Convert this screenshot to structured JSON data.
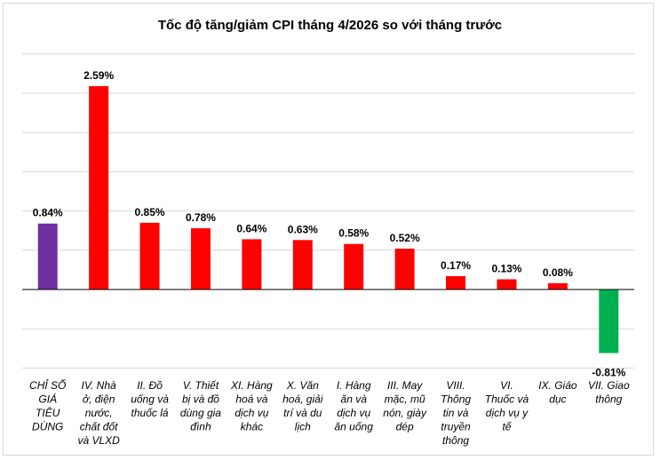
{
  "chart_data": {
    "type": "bar",
    "title": "Tốc độ tăng/giảm  CPI tháng 4/2026 so với tháng trước",
    "xlabel": "",
    "ylabel": "",
    "ylim": [
      -2,
      5
    ],
    "grid": true,
    "categories": [
      "CHỈ SỐ GIÁ TIÊU DÙNG",
      "IV. Nhà ở, điện nước, chất đốt và VLXD",
      "II. Đồ uống và thuốc lá",
      "V. Thiết bị và đồ dùng gia đình",
      "XI. Hàng hoá và dịch vụ khác",
      "X. Văn hoá, giải trí và du lịch",
      "I. Hàng ăn và dịch vụ ăn uống",
      "III. May mặc, mũ nón, giày dép",
      "VIII. Thông tin và truyền thông",
      "VI. Thuốc và dịch vụ y tế",
      "IX. Giáo dục",
      "VII. Giao thông"
    ],
    "category_lines": [
      [
        "CHỈ SỐ",
        "GIÁ",
        "TIÊU",
        "DÙNG"
      ],
      [
        "IV. Nhà",
        "ở, điện",
        "nước,",
        "chất đốt",
        "và VLXD"
      ],
      [
        "II. Đồ",
        "uống và",
        "thuốc lá"
      ],
      [
        "V. Thiết",
        "bị và đồ",
        "dùng gia",
        "đình"
      ],
      [
        "XI. Hàng",
        "hoá và",
        "dịch vụ",
        "khác"
      ],
      [
        "X. Văn",
        "hoá, giải",
        "trí và du",
        "lịch"
      ],
      [
        "I. Hàng",
        "ăn và",
        "dịch vụ",
        "ăn uống"
      ],
      [
        "III. May",
        "mặc, mũ",
        "nón, giày",
        "dép"
      ],
      [
        "VIII.",
        "Thông",
        "tin và",
        "truyền",
        "thông"
      ],
      [
        "VI.",
        "Thuốc và",
        "dịch vụ y",
        "tế"
      ],
      [
        "IX. Giáo",
        "dục"
      ],
      [
        "VII. Giao",
        "thông"
      ]
    ],
    "values": [
      0.84,
      2.59,
      0.85,
      0.78,
      0.64,
      0.63,
      0.58,
      0.52,
      0.17,
      0.13,
      0.08,
      -0.81
    ],
    "labels": [
      "0.84%",
      "2.59%",
      "0.85%",
      "0.78%",
      "0.64%",
      "0.63%",
      "0.58%",
      "0.52%",
      "0.17%",
      "0.13%",
      "0.08%",
      "-0.81%"
    ],
    "colors": [
      "#7030a0",
      "#ff0000",
      "#ff0000",
      "#ff0000",
      "#ff0000",
      "#ff0000",
      "#ff0000",
      "#ff0000",
      "#ff0000",
      "#ff0000",
      "#ff0000",
      "#00b050"
    ]
  }
}
